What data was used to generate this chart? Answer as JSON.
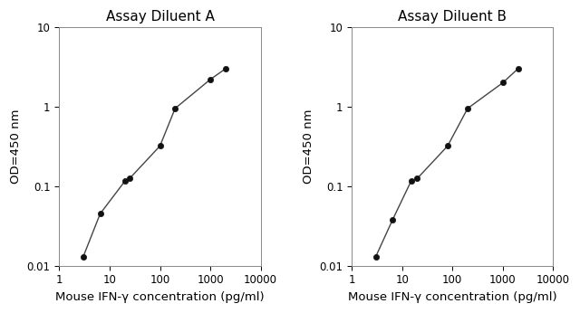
{
  "title_A": "Assay Diluent A",
  "title_B": "Assay Diluent B",
  "xlabel": "Mouse IFN-γ concentration (pg/ml)",
  "ylabel": "OD=450 nm",
  "x_A": [
    3,
    6.5,
    20,
    25,
    100,
    200,
    1000,
    2000
  ],
  "y_A": [
    0.013,
    0.045,
    0.115,
    0.125,
    0.32,
    0.95,
    2.2,
    3.0
  ],
  "x_B": [
    3,
    6.5,
    15,
    20,
    80,
    200,
    1000,
    2000
  ],
  "y_B": [
    0.013,
    0.038,
    0.115,
    0.125,
    0.32,
    0.95,
    2.0,
    3.0
  ],
  "xlim": [
    1,
    10000
  ],
  "ylim": [
    0.01,
    10
  ],
  "line_color": "#444444",
  "marker_color": "#111111",
  "bg_color": "#ffffff",
  "title_fontsize": 11,
  "label_fontsize": 9.5,
  "tick_fontsize": 8.5
}
